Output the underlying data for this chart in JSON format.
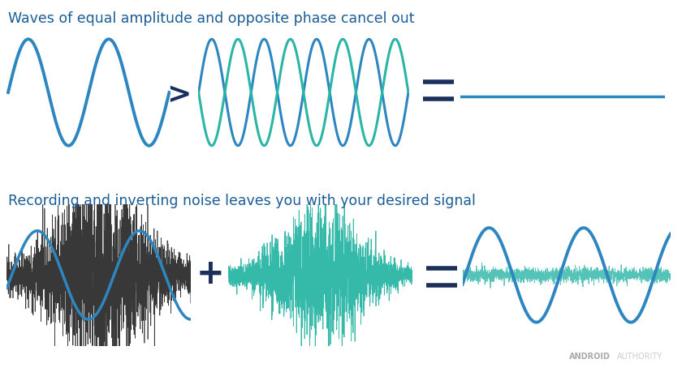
{
  "title1": "Waves of equal amplitude and opposite phase cancel out",
  "title2": "Recording and inverting noise leaves you with your desired signal",
  "title_color": "#1a5c96",
  "title_fontsize": 12.5,
  "blue_color": "#2e86c1",
  "teal_color": "#2ab5a5",
  "dark_navy": "#1a2f5a",
  "bg_color": "#ffffff",
  "operator_color": "#1a2f5a",
  "noise_dark": "#333333",
  "watermark_color": "#cccccc"
}
